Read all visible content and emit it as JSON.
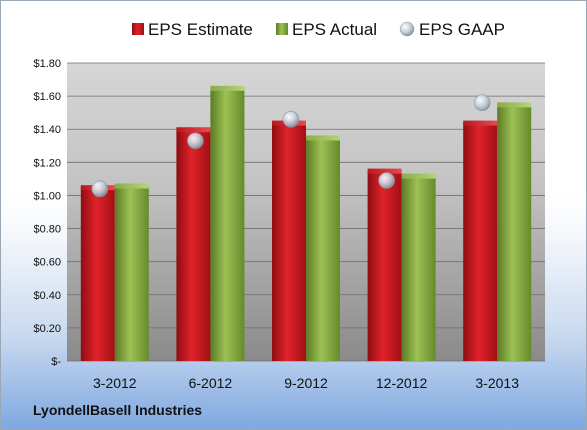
{
  "footer": {
    "company": "LyondellBasell Industries"
  },
  "colors": {
    "estimate": "#c8141c",
    "actual": "#7ea33a",
    "gaap": "#aebdcc"
  },
  "chart_data": {
    "type": "bar",
    "categories": [
      "3-2012",
      "6-2012",
      "9-2012",
      "12-2012",
      "3-2013"
    ],
    "series": [
      {
        "name": "EPS Estimate",
        "type": "bar",
        "values": [
          1.05,
          1.4,
          1.44,
          1.15,
          1.44
        ]
      },
      {
        "name": "EPS Actual",
        "type": "bar",
        "values": [
          1.06,
          1.65,
          1.35,
          1.12,
          1.55
        ]
      },
      {
        "name": "EPS GAAP",
        "type": "scatter",
        "values": [
          1.04,
          1.33,
          1.46,
          1.09,
          1.56
        ]
      }
    ],
    "ylim": [
      0,
      1.8
    ],
    "yticks": [
      0,
      0.2,
      0.4,
      0.6,
      0.8,
      1.0,
      1.2,
      1.4,
      1.6,
      1.8
    ],
    "ytick_labels": [
      "$-",
      "$0.20",
      "$0.40",
      "$0.60",
      "$0.80",
      "$1.00",
      "$1.20",
      "$1.40",
      "$1.60",
      "$1.80"
    ],
    "legend_position": "top",
    "grid": true,
    "xlabel": "",
    "ylabel": "",
    "title": ""
  }
}
